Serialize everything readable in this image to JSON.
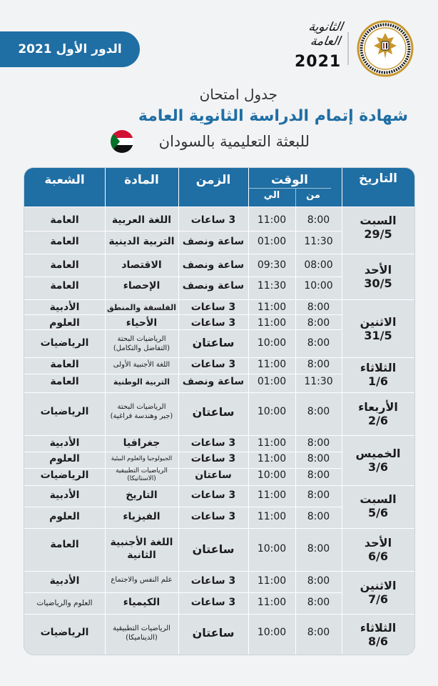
{
  "header": {
    "round_label": "الدور الأول 2021",
    "logo_script_line1": "الثانوية",
    "logo_script_line2": "العامة",
    "logo_year": "2021",
    "ministry_ring_text": "MINISTRY OF EDUCATION AND TECHNICAL EDUCATION",
    "title_line1": "جدول امتحان",
    "title_line2": "شهادة إتمام الدراسة الثانوية العامة",
    "title_line3": "للبعثة التعليمية بالسودان"
  },
  "colors": {
    "accent": "#1f6ea4",
    "table_bg": "#dde2e5",
    "page_bg": "#f2f3f4"
  },
  "table": {
    "headers": {
      "date": "التاريخ",
      "time": "الوقت",
      "from": "من",
      "to": "الي",
      "duration": "الزمن",
      "subject": "المادة",
      "branch": "الشعبة"
    },
    "days": [
      {
        "day": "السبت",
        "date": "29/5"
      },
      {
        "day": "الأحد",
        "date": "30/5"
      },
      {
        "day": "الاثنين",
        "date": "31/5"
      },
      {
        "day": "الثلاثاء",
        "date": "1/6"
      },
      {
        "day": "الأربعاء",
        "date": "2/6"
      },
      {
        "day": "الخميس",
        "date": "3/6"
      },
      {
        "day": "السبت",
        "date": "5/6"
      },
      {
        "day": "الأحد",
        "date": "6/6"
      },
      {
        "day": "الاثنين",
        "date": "7/6"
      },
      {
        "day": "الثلاثاء",
        "date": "8/6"
      }
    ],
    "rows": [
      {
        "from": "8:00",
        "to": "11:00",
        "duration": "3 ساعات",
        "subject": "اللغة العربية",
        "subject_line2": "",
        "branch": "العامة"
      },
      {
        "from": "11:30",
        "to": "01:00",
        "duration": "ساعة ونصف",
        "subject": "التربية الدينية",
        "subject_line2": "",
        "branch": "العامة"
      },
      {
        "from": "08:00",
        "to": "09:30",
        "duration": "ساعة ونصف",
        "subject": "الاقتصاد",
        "subject_line2": "",
        "branch": "العامة"
      },
      {
        "from": "10:00",
        "to": "11:30",
        "duration": "ساعة ونصف",
        "subject": "الإحصاء",
        "subject_line2": "",
        "branch": "العامة"
      },
      {
        "from": "8:00",
        "to": "11:00",
        "duration": "3 ساعات",
        "subject": "الفلسفة والمنطق",
        "subject_line2": "",
        "branch": "الأدبية"
      },
      {
        "from": "8:00",
        "to": "11:00",
        "duration": "3 ساعات",
        "subject": "الأحياء",
        "subject_line2": "",
        "branch": "العلوم"
      },
      {
        "from": "8:00",
        "to": "10:00",
        "duration": "ساعتان",
        "subject": "الرياضيات البحتة",
        "subject_line2": "(التفاضل والتكامل)",
        "branch": "الرياضيات"
      },
      {
        "from": "8:00",
        "to": "11:00",
        "duration": "3 ساعات",
        "subject": "اللغة الأجنبية الأولى",
        "subject_line2": "",
        "branch": "العامة"
      },
      {
        "from": "11:30",
        "to": "01:00",
        "duration": "ساعة ونصف",
        "subject": "التربية الوطنية",
        "subject_line2": "",
        "branch": "العامة"
      },
      {
        "from": "8:00",
        "to": "10:00",
        "duration": "ساعتان",
        "subject": "الرياضيات البحتة",
        "subject_line2": "(جبر وهندسة فراغية)",
        "branch": "الرياضيات"
      },
      {
        "from": "8:00",
        "to": "11:00",
        "duration": "3 ساعات",
        "subject": "جغرافيا",
        "subject_line2": "",
        "branch": "الأدبية"
      },
      {
        "from": "8:00",
        "to": "11:00",
        "duration": "3 ساعات",
        "subject": "الجيولوجيا والعلوم البيئية",
        "subject_line2": "",
        "branch": "العلوم"
      },
      {
        "from": "8:00",
        "to": "10:00",
        "duration": "ساعتان",
        "subject": "الرياضيات التطبيقية",
        "subject_line2": "(الاستاتيكا)",
        "branch": "الرياضيات"
      },
      {
        "from": "8:00",
        "to": "11:00",
        "duration": "3 ساعات",
        "subject": "التاريخ",
        "subject_line2": "",
        "branch": "الأدبية"
      },
      {
        "from": "8:00",
        "to": "11:00",
        "duration": "3 ساعات",
        "subject": "الفيزياء",
        "subject_line2": "",
        "branch": "العلوم"
      },
      {
        "from": "8:00",
        "to": "10:00",
        "duration": "ساعتان",
        "subject": "اللغة الأجنبية",
        "subject_line2": "الثانية",
        "branch": "العامة"
      },
      {
        "from": "8:00",
        "to": "11:00",
        "duration": "3 ساعات",
        "subject": "علم النفس والاجتماع",
        "subject_line2": "",
        "branch": "الأدبية"
      },
      {
        "from": "8:00",
        "to": "11:00",
        "duration": "3 ساعات",
        "subject": "الكيمياء",
        "subject_line2": "",
        "branch": "العلوم والرياضيات"
      },
      {
        "from": "8:00",
        "to": "10:00",
        "duration": "ساعتان",
        "subject": "الرياضيات التطبيقية",
        "subject_line2": "(الديناميكا)",
        "branch": "الرياضيات"
      }
    ]
  }
}
